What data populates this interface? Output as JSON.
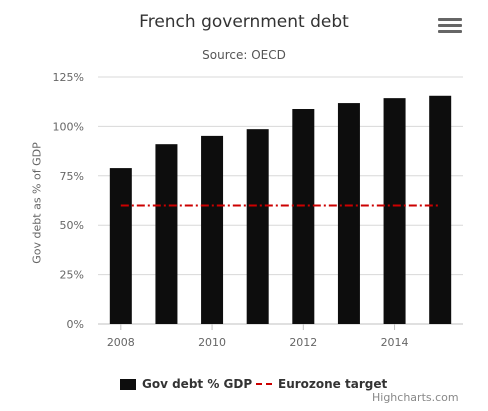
{
  "chart_data": {
    "type": "bar",
    "title": "French government debt",
    "subtitle": "Source: OECD",
    "ylabel": "Gov debt as % of GDP",
    "xlabel": "",
    "x": [
      2008,
      2009,
      2010,
      2011,
      2012,
      2013,
      2014,
      2015
    ],
    "x_tick_labels": [
      "2008",
      "2010",
      "2012",
      "2014"
    ],
    "y_tick_labels": [
      "0%",
      "25%",
      "50%",
      "75%",
      "100%",
      "125%"
    ],
    "ylim": [
      0,
      125
    ],
    "grid": true,
    "series": [
      {
        "name": "Gov debt % GDP",
        "type": "bar",
        "color": "#0d0d0d",
        "values": [
          78.9,
          91,
          95.2,
          98.6,
          108.8,
          111.8,
          114.3,
          115.5
        ]
      },
      {
        "name": "Eurozone target",
        "type": "line",
        "style": "dash-dot",
        "color": "#cc0000",
        "values": [
          60,
          60,
          60,
          60,
          60,
          60,
          60,
          60
        ]
      }
    ],
    "legend_position": "bottom-center"
  },
  "credits": "Highcharts.com",
  "menu_icon": "hamburger-menu-icon"
}
